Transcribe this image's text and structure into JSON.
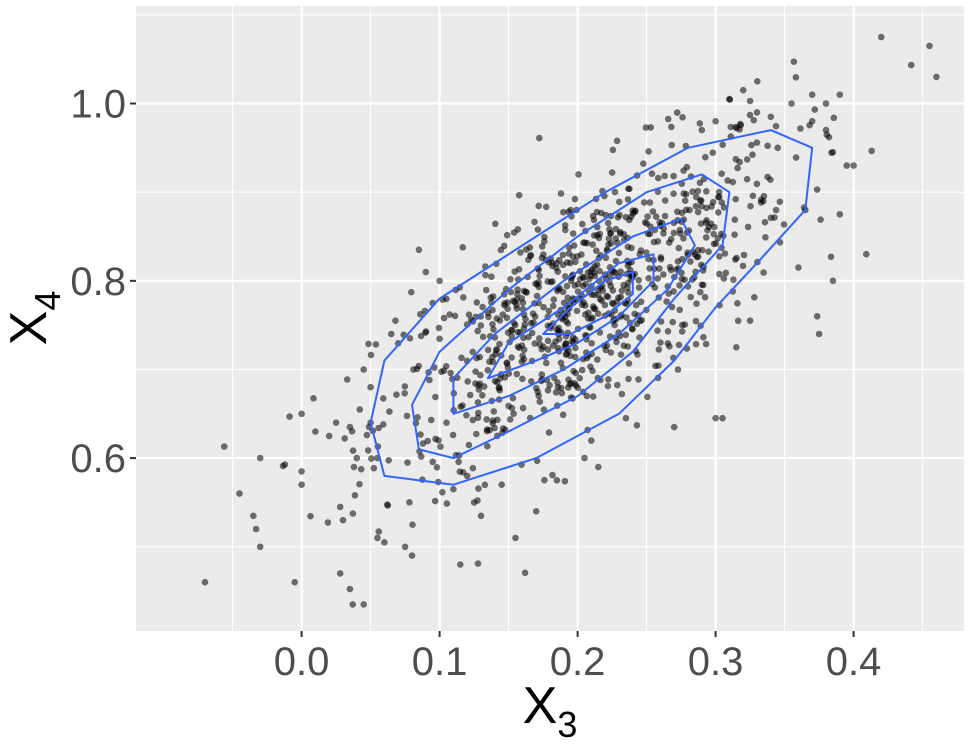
{
  "chart_data": {
    "type": "scatter",
    "title": "",
    "xlabel": "X",
    "xlabel_subscript": "3",
    "ylabel": "X",
    "ylabel_subscript": "4",
    "xlim": [
      -0.12,
      0.48
    ],
    "ylim": [
      0.405,
      1.11
    ],
    "x_ticks": [
      0.0,
      0.1,
      0.2,
      0.3,
      0.4
    ],
    "x_tick_labels": [
      "0.0",
      "0.1",
      "0.2",
      "0.3",
      "0.4"
    ],
    "y_ticks": [
      0.6,
      0.8,
      1.0
    ],
    "y_tick_labels": [
      "0.6",
      "0.8",
      "1.0"
    ],
    "grid": true,
    "point_color": "#000000",
    "point_opacity": 0.55,
    "contour_color": "#3366FF",
    "panel_background": "#EBEBEB",
    "grid_color": "#FFFFFF",
    "n_points": 1000,
    "points": [
      [
        -0.07,
        0.46
      ],
      [
        -0.045,
        0.56
      ],
      [
        -0.035,
        0.535
      ],
      [
        -0.033,
        0.52
      ],
      [
        -0.03,
        0.5
      ],
      [
        -0.03,
        0.6
      ],
      [
        -0.005,
        0.46
      ],
      [
        -0.0,
        0.65
      ],
      [
        0.0,
        0.585
      ],
      [
        0.0,
        0.57
      ],
      [
        0.01,
        0.63
      ],
      [
        0.02,
        0.625
      ],
      [
        0.025,
        0.64
      ],
      [
        0.028,
        0.545
      ],
      [
        0.03,
        0.53
      ],
      [
        0.028,
        0.47
      ],
      [
        0.035,
        0.635
      ],
      [
        0.038,
        0.59
      ],
      [
        0.04,
        0.6
      ],
      [
        0.037,
        0.435
      ],
      [
        0.045,
        0.435
      ],
      [
        0.045,
        0.7
      ],
      [
        0.05,
        0.68
      ],
      [
        0.05,
        0.64
      ],
      [
        0.055,
        0.6
      ],
      [
        0.055,
        0.51
      ],
      [
        0.06,
        0.505
      ],
      [
        0.065,
        0.74
      ],
      [
        0.068,
        0.755
      ],
      [
        0.075,
        0.5
      ],
      [
        0.08,
        0.49
      ],
      [
        0.085,
        0.835
      ],
      [
        0.09,
        0.81
      ],
      [
        0.095,
        0.775
      ],
      [
        0.1,
        0.8
      ],
      [
        0.105,
        0.64
      ],
      [
        0.11,
        0.565
      ],
      [
        0.115,
        0.48
      ],
      [
        0.12,
        0.58
      ],
      [
        0.125,
        0.55
      ],
      [
        0.13,
        0.535
      ],
      [
        0.145,
        0.57
      ],
      [
        0.155,
        0.51
      ],
      [
        0.17,
        0.54
      ],
      [
        0.185,
        0.575
      ],
      [
        0.205,
        0.6
      ],
      [
        0.215,
        0.59
      ],
      [
        0.235,
        0.645
      ],
      [
        0.27,
        0.635
      ],
      [
        0.29,
        0.97
      ],
      [
        0.3,
        0.645
      ],
      [
        0.305,
        0.645
      ],
      [
        0.315,
        0.725
      ],
      [
        0.325,
        0.755
      ],
      [
        0.32,
        1.015
      ],
      [
        0.31,
        1.005
      ],
      [
        0.33,
        0.99
      ],
      [
        0.345,
        0.95
      ],
      [
        0.355,
        1.0
      ],
      [
        0.36,
        0.815
      ],
      [
        0.37,
        1.01
      ],
      [
        0.375,
        0.74
      ],
      [
        0.38,
        1.0
      ],
      [
        0.385,
        0.8
      ],
      [
        0.39,
        1.01
      ],
      [
        0.385,
        0.945
      ],
      [
        0.39,
        0.875
      ],
      [
        0.395,
        0.93
      ],
      [
        0.4,
        0.93
      ],
      [
        0.42,
        1.075
      ],
      [
        0.455,
        1.065
      ],
      [
        0.46,
        1.03
      ],
      [
        0.38,
        0.97
      ],
      [
        0.37,
        0.98
      ],
      [
        0.34,
        0.985
      ],
      [
        0.3,
        0.98
      ]
    ],
    "contours": [
      [
        [
          0.06,
          0.58
        ],
        [
          0.05,
          0.64
        ],
        [
          0.06,
          0.71
        ],
        [
          0.1,
          0.78
        ],
        [
          0.16,
          0.84
        ],
        [
          0.22,
          0.9
        ],
        [
          0.28,
          0.95
        ],
        [
          0.34,
          0.97
        ],
        [
          0.37,
          0.95
        ],
        [
          0.365,
          0.88
        ],
        [
          0.33,
          0.82
        ],
        [
          0.3,
          0.77
        ],
        [
          0.27,
          0.71
        ],
        [
          0.23,
          0.65
        ],
        [
          0.17,
          0.6
        ],
        [
          0.11,
          0.57
        ],
        [
          0.06,
          0.58
        ]
      ],
      [
        [
          0.085,
          0.61
        ],
        [
          0.08,
          0.66
        ],
        [
          0.1,
          0.72
        ],
        [
          0.15,
          0.79
        ],
        [
          0.2,
          0.85
        ],
        [
          0.25,
          0.9
        ],
        [
          0.29,
          0.92
        ],
        [
          0.31,
          0.9
        ],
        [
          0.305,
          0.84
        ],
        [
          0.27,
          0.78
        ],
        [
          0.24,
          0.72
        ],
        [
          0.2,
          0.67
        ],
        [
          0.15,
          0.63
        ],
        [
          0.11,
          0.6
        ],
        [
          0.085,
          0.61
        ]
      ],
      [
        [
          0.11,
          0.65
        ],
        [
          0.11,
          0.69
        ],
        [
          0.14,
          0.74
        ],
        [
          0.19,
          0.8
        ],
        [
          0.24,
          0.85
        ],
        [
          0.275,
          0.87
        ],
        [
          0.285,
          0.84
        ],
        [
          0.265,
          0.79
        ],
        [
          0.23,
          0.74
        ],
        [
          0.19,
          0.7
        ],
        [
          0.15,
          0.67
        ],
        [
          0.11,
          0.65
        ]
      ],
      [
        [
          0.135,
          0.69
        ],
        [
          0.15,
          0.73
        ],
        [
          0.19,
          0.77
        ],
        [
          0.23,
          0.82
        ],
        [
          0.255,
          0.83
        ],
        [
          0.255,
          0.8
        ],
        [
          0.23,
          0.76
        ],
        [
          0.2,
          0.73
        ],
        [
          0.17,
          0.71
        ],
        [
          0.135,
          0.69
        ]
      ],
      [
        [
          0.175,
          0.74
        ],
        [
          0.195,
          0.77
        ],
        [
          0.22,
          0.8
        ],
        [
          0.24,
          0.81
        ],
        [
          0.24,
          0.785
        ],
        [
          0.22,
          0.76
        ],
        [
          0.195,
          0.74
        ],
        [
          0.175,
          0.74
        ]
      ]
    ]
  }
}
